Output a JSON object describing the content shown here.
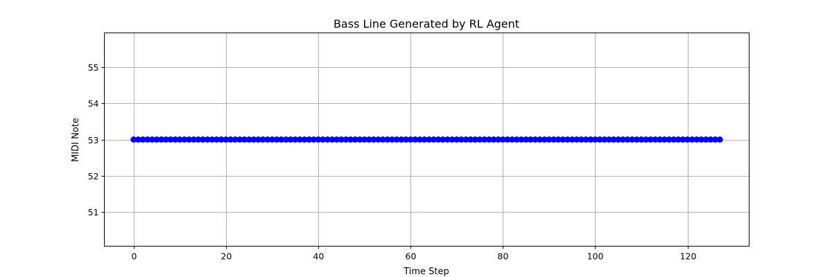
{
  "chart_data": {
    "type": "line",
    "title": "Bass Line Generated by RL Agent",
    "xlabel": "Time Step",
    "ylabel": "MIDI Note",
    "xlim": [
      -6.35,
      133.35
    ],
    "ylim": [
      50.05,
      55.95
    ],
    "xticks": [
      0,
      20,
      40,
      60,
      80,
      100,
      120
    ],
    "yticks": [
      51,
      52,
      53,
      54,
      55
    ],
    "grid": true,
    "series": [
      {
        "color": "#0000ff",
        "marker": "circle",
        "x_start": 0,
        "x_end": 127,
        "x_step": 1,
        "values": [
          53,
          53,
          53,
          53,
          53,
          53,
          53,
          53,
          53,
          53,
          53,
          53,
          53,
          53,
          53,
          53,
          53,
          53,
          53,
          53,
          53,
          53,
          53,
          53,
          53,
          53,
          53,
          53,
          53,
          53,
          53,
          53,
          53,
          53,
          53,
          53,
          53,
          53,
          53,
          53,
          53,
          53,
          53,
          53,
          53,
          53,
          53,
          53,
          53,
          53,
          53,
          53,
          53,
          53,
          53,
          53,
          53,
          53,
          53,
          53,
          53,
          53,
          53,
          53,
          53,
          53,
          53,
          53,
          53,
          53,
          53,
          53,
          53,
          53,
          53,
          53,
          53,
          53,
          53,
          53,
          53,
          53,
          53,
          53,
          53,
          53,
          53,
          53,
          53,
          53,
          53,
          53,
          53,
          53,
          53,
          53,
          53,
          53,
          53,
          53,
          53,
          53,
          53,
          53,
          53,
          53,
          53,
          53,
          53,
          53,
          53,
          53,
          53,
          53,
          53,
          53,
          53,
          53,
          53,
          53,
          53,
          53,
          53,
          53,
          53,
          53,
          53,
          53
        ]
      }
    ]
  }
}
